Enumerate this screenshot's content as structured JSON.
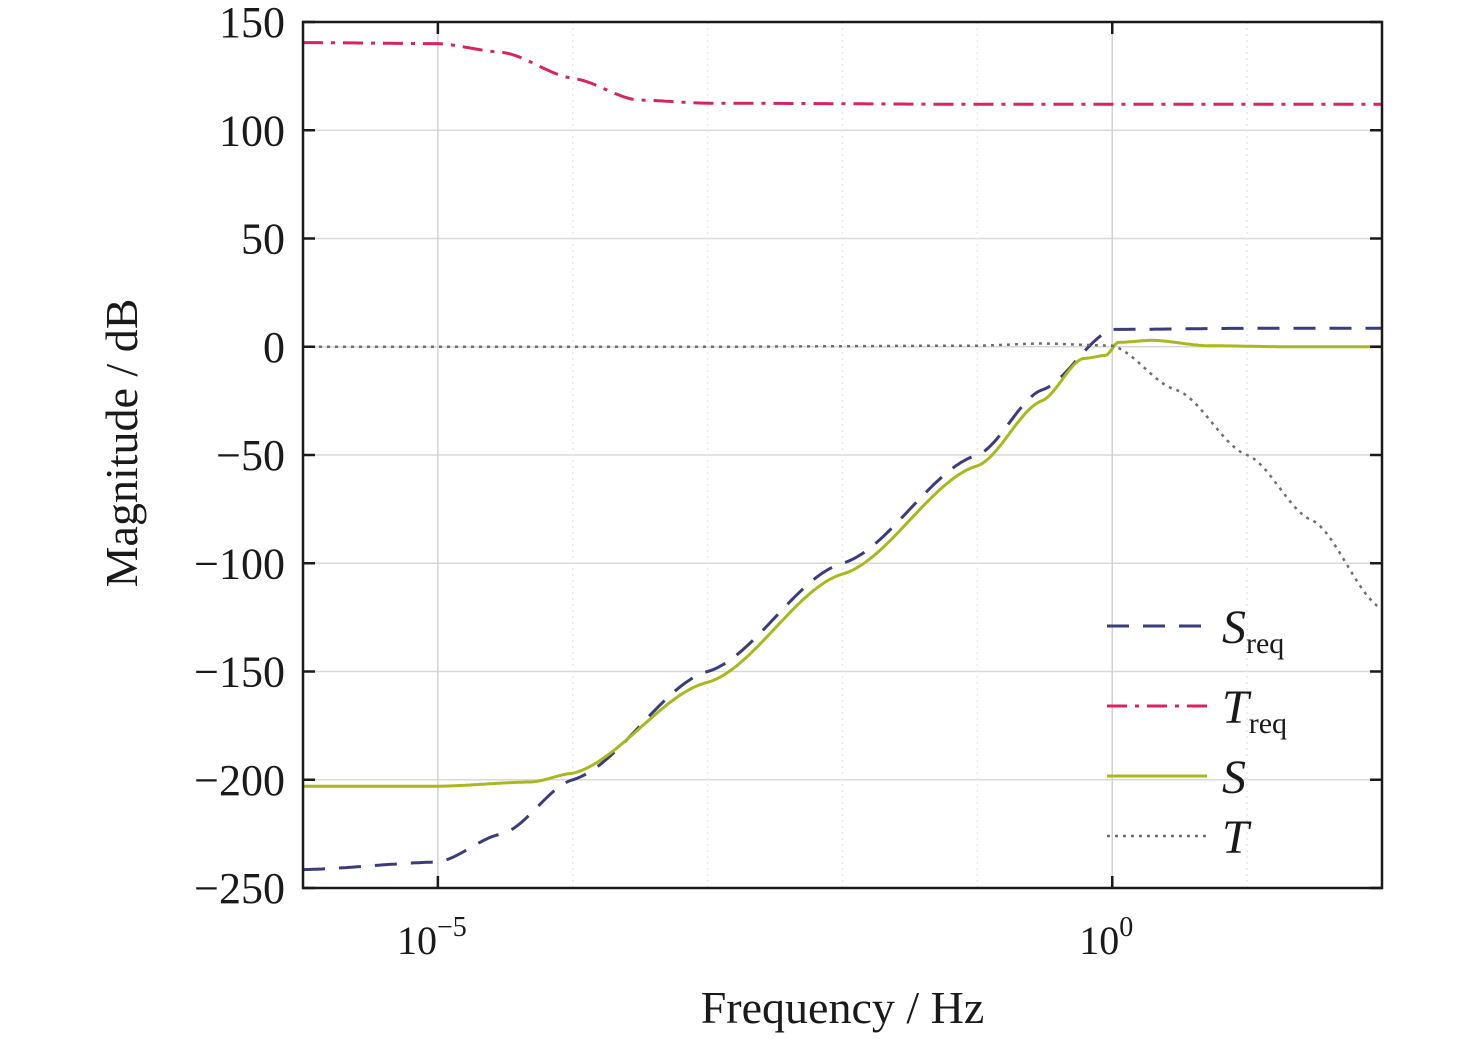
{
  "chart_data": {
    "type": "line",
    "title": "",
    "xlabel": "Frequency / Hz",
    "ylabel": "Magnitude / dB",
    "xscale": "log",
    "xlim": [
      1e-06,
      100.0
    ],
    "ylim": [
      -250,
      150
    ],
    "grid": true,
    "legend_position": "lower-right",
    "x_ticks": [
      {
        "value": 1e-05,
        "base": "10",
        "exp": "−5"
      },
      {
        "value": 1,
        "base": "10",
        "exp": "0"
      }
    ],
    "y_ticks": [
      {
        "value": 150,
        "label": "150"
      },
      {
        "value": 100,
        "label": "100"
      },
      {
        "value": 50,
        "label": "50"
      },
      {
        "value": 0,
        "label": "0"
      },
      {
        "value": -50,
        "label": "−50"
      },
      {
        "value": -100,
        "label": "−100"
      },
      {
        "value": -150,
        "label": "−150"
      },
      {
        "value": -200,
        "label": "−200"
      },
      {
        "value": -250,
        "label": "−250"
      }
    ],
    "series": [
      {
        "name": "S",
        "name_sub": "req",
        "key": "s-req",
        "color": "#3a3d7a",
        "dash": "22,14",
        "points": [
          [
            1e-06,
            -241.5
          ],
          [
            1e-05,
            -238
          ],
          [
            3e-05,
            -225
          ],
          [
            0.0001,
            -200
          ],
          [
            0.001,
            -150
          ],
          [
            0.01,
            -100
          ],
          [
            0.1,
            -50
          ],
          [
            0.3,
            -20
          ],
          [
            1,
            8
          ],
          [
            10,
            8.5
          ],
          [
            100,
            8.5
          ]
        ]
      },
      {
        "name": "T",
        "name_sub": "req",
        "key": "t-req",
        "color": "#d6245f",
        "dash": "20,8,4,8",
        "points": [
          [
            1e-06,
            140.5
          ],
          [
            1e-05,
            140
          ],
          [
            3e-05,
            136
          ],
          [
            0.0001,
            124
          ],
          [
            0.0003,
            114
          ],
          [
            0.001,
            112.5
          ],
          [
            0.1,
            112
          ],
          [
            1,
            112
          ],
          [
            10,
            112
          ],
          [
            100,
            112
          ]
        ]
      },
      {
        "name": "S",
        "name_sub": "",
        "key": "s",
        "color": "#a8b81e",
        "dash": "",
        "points": [
          [
            1e-06,
            -203
          ],
          [
            1e-05,
            -203
          ],
          [
            5e-05,
            -201
          ],
          [
            0.0001,
            -197
          ],
          [
            0.001,
            -155
          ],
          [
            0.01,
            -105
          ],
          [
            0.1,
            -55
          ],
          [
            0.3,
            -25
          ],
          [
            0.6,
            -5.5
          ],
          [
            0.9,
            -4
          ],
          [
            1.1,
            2
          ],
          [
            2,
            3
          ],
          [
            5,
            0.5
          ],
          [
            20,
            0
          ],
          [
            100,
            0
          ]
        ]
      },
      {
        "name": "T",
        "name_sub": "",
        "key": "t",
        "color": "#6e6e6e",
        "dash": "3,5",
        "points": [
          [
            1e-06,
            0
          ],
          [
            0.001,
            0
          ],
          [
            0.1,
            0.5
          ],
          [
            0.3,
            1.5
          ],
          [
            1,
            0.5
          ],
          [
            3,
            -20
          ],
          [
            10,
            -50
          ],
          [
            30,
            -80
          ],
          [
            100,
            -121
          ]
        ]
      }
    ]
  }
}
